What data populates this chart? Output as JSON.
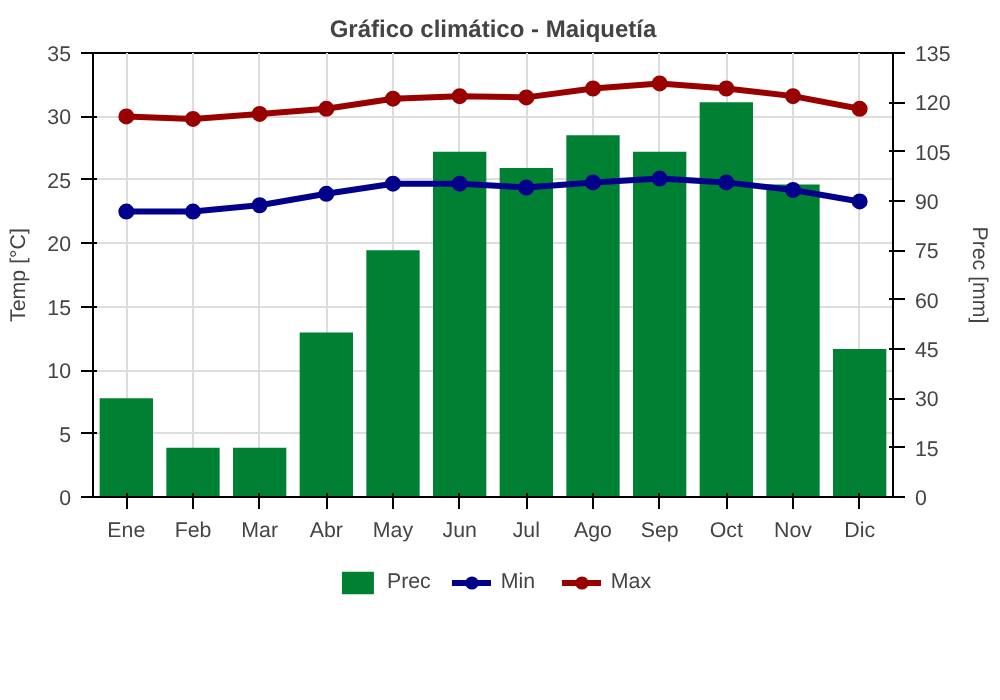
{
  "chart_data": {
    "type": "bar",
    "title": "Gráfico climático - Maiquetía",
    "ylabel": "Temp [°C]",
    "y2label": "Prec [mm]",
    "categories": [
      "Ene",
      "Feb",
      "Mar",
      "Abr",
      "May",
      "Jun",
      "Jul",
      "Ago",
      "Sep",
      "Oct",
      "Nov",
      "Dic"
    ],
    "series": [
      {
        "name": "Prec",
        "axis": "y2",
        "color": "#008033",
        "values": [
          30,
          15,
          15,
          50,
          75,
          105,
          100,
          110,
          105,
          120,
          95,
          45
        ]
      },
      {
        "name": "Min",
        "type": "line",
        "color": "#00008b",
        "marker": "circle",
        "values": [
          22.5,
          22.5,
          23,
          23.9,
          24.7,
          24.7,
          24.4,
          24.8,
          25.1,
          24.8,
          24.2,
          23.3
        ]
      },
      {
        "name": "Max",
        "type": "line",
        "color": "#990000",
        "marker": "circle",
        "values": [
          30,
          29.8,
          30.2,
          30.6,
          31.4,
          31.6,
          31.5,
          32.2,
          32.6,
          32.2,
          31.6,
          30.6
        ]
      }
    ],
    "ylim": [
      0,
      35
    ],
    "yticks": [
      0,
      5,
      10,
      15,
      20,
      25,
      30,
      35
    ],
    "y2lim": [
      0,
      135
    ],
    "y2ticks": [
      0,
      15,
      30,
      45,
      60,
      75,
      90,
      105,
      120,
      135
    ],
    "grid": true,
    "legend": "bottom"
  }
}
